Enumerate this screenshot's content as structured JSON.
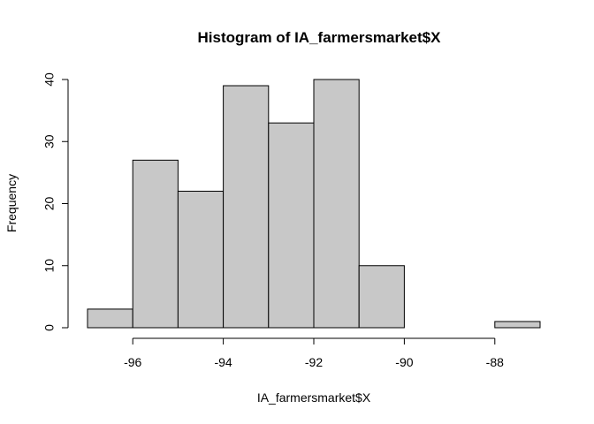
{
  "chart_data": {
    "type": "bar",
    "title": "Histogram of IA_farmersmarket$X",
    "xlabel": "IA_farmersmarket$X",
    "ylabel": "Frequency",
    "bin_edges": [
      -97,
      -96,
      -95,
      -94,
      -93,
      -92,
      -91,
      -90,
      -89,
      -88,
      -87
    ],
    "values": [
      3,
      27,
      22,
      39,
      33,
      40,
      10,
      0,
      0,
      1
    ],
    "xlim": [
      -97,
      -87
    ],
    "ylim": [
      0,
      40
    ],
    "x_ticks": [
      -96,
      -94,
      -92,
      -90,
      -88
    ],
    "y_ticks": [
      0,
      10,
      20,
      30,
      40
    ],
    "bar_color": "#c8c8c8",
    "edge_color": "#000000",
    "grid": false
  }
}
